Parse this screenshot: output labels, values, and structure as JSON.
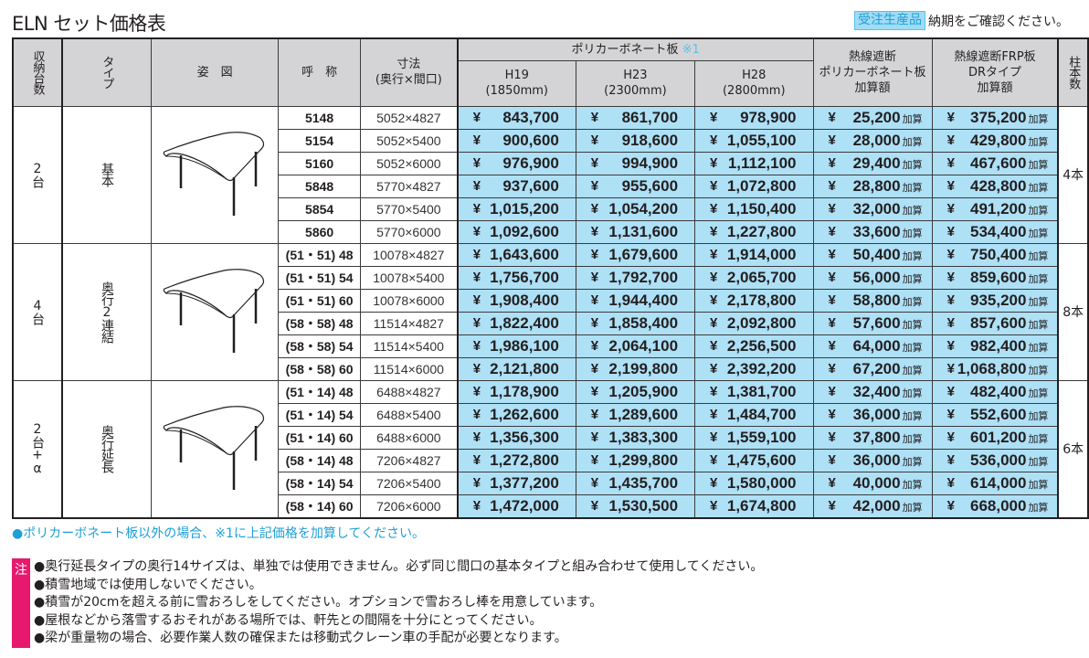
{
  "title": "ELN セット価格表",
  "order_note": {
    "badge": "受注生産品",
    "text": "納期をご確認ください。"
  },
  "header": {
    "capacity": "収納台数",
    "type": "タイプ",
    "figure": "姿　図",
    "name": "呼　称",
    "dimension_l1": "寸法",
    "dimension_l2": "(奥行×間口)",
    "polycarbonate": "ポリカーボネート板",
    "polycarbonate_mark": "※1",
    "h19": "H19",
    "h19_mm": "(1850mm)",
    "h23": "H23",
    "h23_mm": "(2300mm)",
    "h28": "H28",
    "h28_mm": "(2800mm)",
    "heat_poly_l1": "熱線遮断",
    "heat_poly_l2": "ポリカーボネート板",
    "heat_poly_l3": "加算額",
    "heat_frp_l1": "熱線遮断FRP板",
    "heat_frp_l2": "DRタイプ",
    "heat_frp_l3": "加算額",
    "posts": "柱本数"
  },
  "yen": "¥",
  "kasan": "加算",
  "groups": [
    {
      "capacity": "2台",
      "type": "基本",
      "posts": "4本",
      "figure_icon": "carport-basic-icon",
      "rows": [
        {
          "name": "5148",
          "dim": "5052×4827",
          "h19": "843,700",
          "h23": "861,700",
          "h28": "978,900",
          "heat_poly": "25,200",
          "heat_frp": "375,200"
        },
        {
          "name": "5154",
          "dim": "5052×5400",
          "h19": "900,600",
          "h23": "918,600",
          "h28": "1,055,100",
          "heat_poly": "28,000",
          "heat_frp": "429,800"
        },
        {
          "name": "5160",
          "dim": "5052×6000",
          "h19": "976,900",
          "h23": "994,900",
          "h28": "1,112,100",
          "heat_poly": "29,400",
          "heat_frp": "467,600"
        },
        {
          "name": "5848",
          "dim": "5770×4827",
          "h19": "937,600",
          "h23": "955,600",
          "h28": "1,072,800",
          "heat_poly": "28,800",
          "heat_frp": "428,800"
        },
        {
          "name": "5854",
          "dim": "5770×5400",
          "h19": "1,015,200",
          "h23": "1,054,200",
          "h28": "1,150,400",
          "heat_poly": "32,000",
          "heat_frp": "491,200"
        },
        {
          "name": "5860",
          "dim": "5770×6000",
          "h19": "1,092,600",
          "h23": "1,131,600",
          "h28": "1,227,800",
          "heat_poly": "33,600",
          "heat_frp": "534,400"
        }
      ]
    },
    {
      "capacity": "4台",
      "type": "奥行2連結",
      "posts": "8本",
      "figure_icon": "carport-double-icon",
      "rows": [
        {
          "name": "(51・51) 48",
          "dim": "10078×4827",
          "h19": "1,643,600",
          "h23": "1,679,600",
          "h28": "1,914,000",
          "heat_poly": "50,400",
          "heat_frp": "750,400"
        },
        {
          "name": "(51・51) 54",
          "dim": "10078×5400",
          "h19": "1,756,700",
          "h23": "1,792,700",
          "h28": "2,065,700",
          "heat_poly": "56,000",
          "heat_frp": "859,600"
        },
        {
          "name": "(51・51) 60",
          "dim": "10078×6000",
          "h19": "1,908,400",
          "h23": "1,944,400",
          "h28": "2,178,800",
          "heat_poly": "58,800",
          "heat_frp": "935,200"
        },
        {
          "name": "(58・58) 48",
          "dim": "11514×4827",
          "h19": "1,822,400",
          "h23": "1,858,400",
          "h28": "2,092,800",
          "heat_poly": "57,600",
          "heat_frp": "857,600"
        },
        {
          "name": "(58・58) 54",
          "dim": "11514×5400",
          "h19": "1,986,100",
          "h23": "2,064,100",
          "h28": "2,256,500",
          "heat_poly": "64,000",
          "heat_frp": "982,400"
        },
        {
          "name": "(58・58) 60",
          "dim": "11514×6000",
          "h19": "2,121,800",
          "h23": "2,199,800",
          "h28": "2,392,200",
          "heat_poly": "67,200",
          "heat_frp": "1,068,800"
        }
      ]
    },
    {
      "capacity": "2台+α",
      "type": "奥行延長",
      "posts": "6本",
      "figure_icon": "carport-extension-icon",
      "rows": [
        {
          "name": "(51・14) 48",
          "dim": "6488×4827",
          "h19": "1,178,900",
          "h23": "1,205,900",
          "h28": "1,381,700",
          "heat_poly": "32,400",
          "heat_frp": "482,400"
        },
        {
          "name": "(51・14) 54",
          "dim": "6488×5400",
          "h19": "1,262,600",
          "h23": "1,289,600",
          "h28": "1,484,700",
          "heat_poly": "36,000",
          "heat_frp": "552,600"
        },
        {
          "name": "(51・14) 60",
          "dim": "6488×6000",
          "h19": "1,356,300",
          "h23": "1,383,300",
          "h28": "1,559,100",
          "heat_poly": "37,800",
          "heat_frp": "601,200"
        },
        {
          "name": "(58・14) 48",
          "dim": "7206×4827",
          "h19": "1,272,800",
          "h23": "1,299,800",
          "h28": "1,475,600",
          "heat_poly": "36,000",
          "heat_frp": "536,000"
        },
        {
          "name": "(58・14) 54",
          "dim": "7206×5400",
          "h19": "1,377,200",
          "h23": "1,435,700",
          "h28": "1,580,000",
          "heat_poly": "40,000",
          "heat_frp": "614,000"
        },
        {
          "name": "(58・14) 60",
          "dim": "7206×6000",
          "h19": "1,472,000",
          "h23": "1,530,500",
          "h28": "1,674,800",
          "heat_poly": "42,000",
          "heat_frp": "668,000"
        }
      ]
    }
  ],
  "footnote": "●ポリカーボネート板以外の場合、※1に上記価格を加算してください。",
  "notes_mark": "注",
  "notes": [
    "●奥行延長タイプの奥行14サイズは、単独では使用できません。必ず同じ間口の基本タイプと組み合わせて使用してください。",
    "●積雪地域では使用しないでください。",
    "●積雪が20cmを超える前に雪おろしをしてください。オプションで雪おろし棒を用意しています。",
    "●屋根などから落雪するおそれがある場所では、軒先との間隔を十分にとってください。",
    "●梁が重量物の場合、必要作業人数の確保または移動式クレーン車の手配が必要となります。"
  ],
  "colors": {
    "price_bg": "#aee0f6",
    "header_bg": "#d4d4d6",
    "accent_blue": "#1e9fd8",
    "note_pink": "#e6196f"
  }
}
